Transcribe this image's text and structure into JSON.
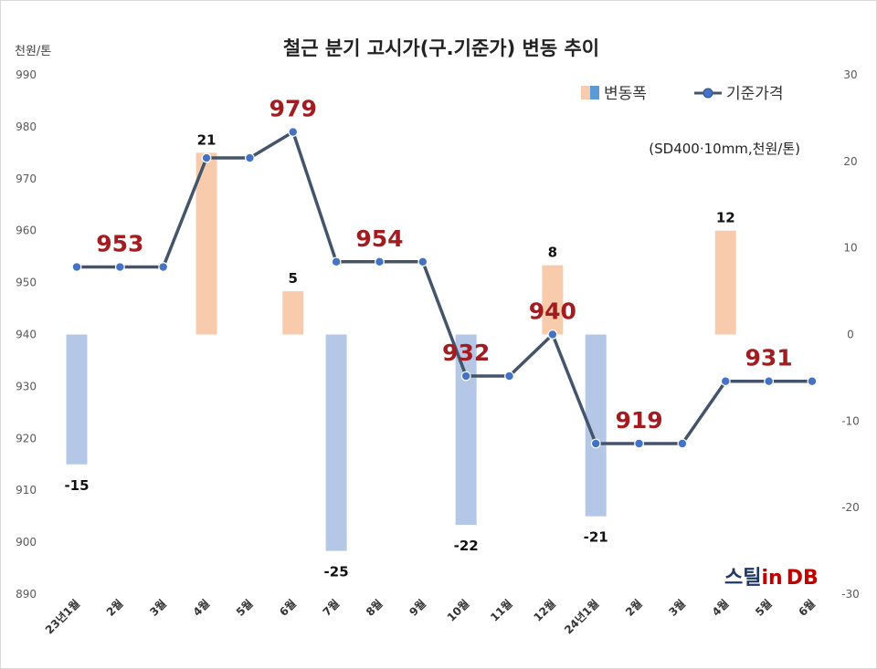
{
  "chart_data": {
    "type": "bar+line",
    "title": "철근 분기 고시가(구.기준가) 변동 추이",
    "left_unit": "천원/톤",
    "note": "(SD400·10mm,천원/톤)",
    "categories": [
      "23년1월",
      "2월",
      "3월",
      "4월",
      "5월",
      "6월",
      "7월",
      "8월",
      "9월",
      "10월",
      "11월",
      "12월",
      "24년1월",
      "2월",
      "3월",
      "4월",
      "5월",
      "6월"
    ],
    "series": [
      {
        "name": "변동폭",
        "type": "bar",
        "axis": "right",
        "color_pos": "#f8cbad",
        "color_neg": "#b4c7e7",
        "values": [
          -15,
          null,
          null,
          21,
          null,
          5,
          -25,
          null,
          null,
          -22,
          null,
          8,
          -21,
          null,
          null,
          12,
          null,
          null
        ],
        "labels": [
          "-15",
          "",
          "",
          "21",
          "",
          "5",
          "-25",
          "",
          "",
          "-22",
          "",
          "8",
          "-21",
          "",
          "",
          "12",
          "",
          ""
        ]
      },
      {
        "name": "기준가격",
        "type": "line",
        "axis": "left",
        "color": "#44546a",
        "marker_color": "#4472c4",
        "values": [
          953,
          953,
          953,
          974,
          974,
          979,
          954,
          954,
          954,
          932,
          932,
          940,
          919,
          919,
          919,
          931,
          931,
          931
        ],
        "labels": [
          "",
          "953",
          "",
          "",
          "",
          "979",
          "",
          "954",
          "",
          "932",
          "",
          "940",
          "",
          "919",
          "",
          "",
          "931",
          ""
        ]
      }
    ],
    "y_left": {
      "min": 890,
      "max": 990,
      "step": 10,
      "ticks": [
        "890",
        "900",
        "910",
        "920",
        "930",
        "940",
        "950",
        "960",
        "970",
        "980",
        "990"
      ]
    },
    "y_right": {
      "min": -30,
      "max": 30,
      "step": 10,
      "ticks": [
        "-30",
        "-20",
        "-10",
        "0",
        "10",
        "20",
        "30"
      ]
    },
    "legend": {
      "position": "top-right",
      "items": [
        "변동폭",
        "기준가격"
      ]
    },
    "grid": false
  },
  "logo": {
    "text_a": "스틸",
    "text_b": "in",
    "text_c": "DB"
  }
}
